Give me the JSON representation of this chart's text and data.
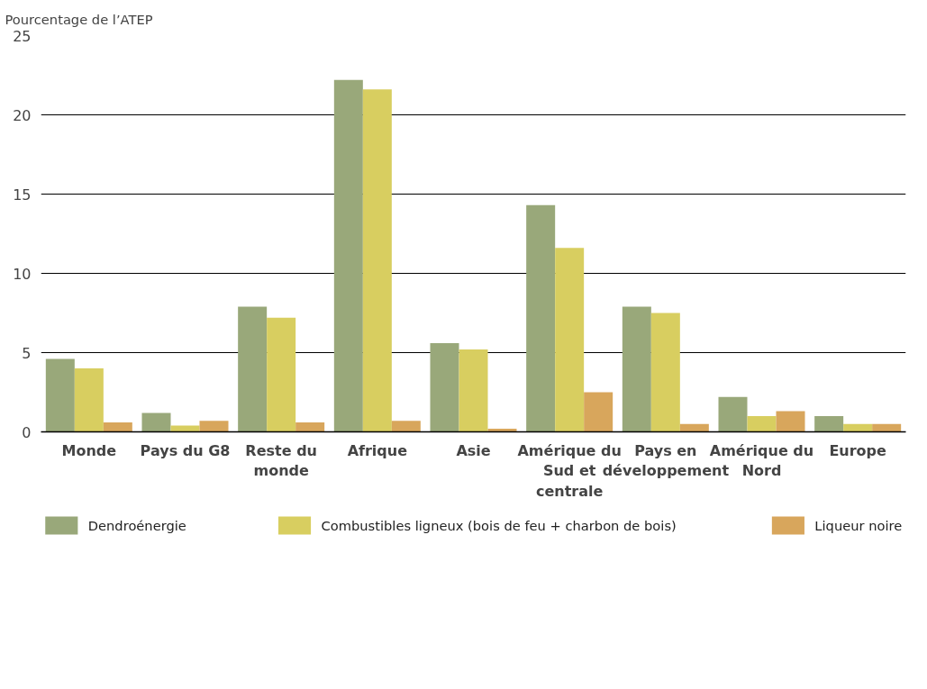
{
  "chart_data": {
    "type": "bar",
    "ylabel": "Pourcentage de l’ATEP",
    "categories": [
      "Monde",
      "Pays du G8",
      "Reste du monde",
      "Afrique",
      "Asie",
      "Amérique du Sud et centrale",
      "Pays en développement",
      "Amérique du Nord",
      "Europe"
    ],
    "series": [
      {
        "name": "Dendroénergie",
        "color": "#99a87a",
        "values": [
          4.6,
          1.2,
          7.9,
          22.2,
          5.6,
          14.3,
          7.9,
          2.2,
          1.0
        ]
      },
      {
        "name": "Combustibles ligneux (bois de feu + charbon de bois)",
        "color": "#d8ce60",
        "values": [
          4.0,
          0.4,
          7.2,
          21.6,
          5.2,
          11.6,
          7.5,
          1.0,
          0.5
        ]
      },
      {
        "name": "Liqueur noire",
        "color": "#d8a65c",
        "values": [
          0.6,
          0.7,
          0.6,
          0.7,
          0.2,
          2.5,
          0.5,
          1.3,
          0.5
        ]
      }
    ],
    "ylim": [
      0,
      25
    ],
    "yticks": [
      0,
      5,
      10,
      15,
      20,
      25
    ],
    "grid": "y",
    "legend": "bottom"
  }
}
